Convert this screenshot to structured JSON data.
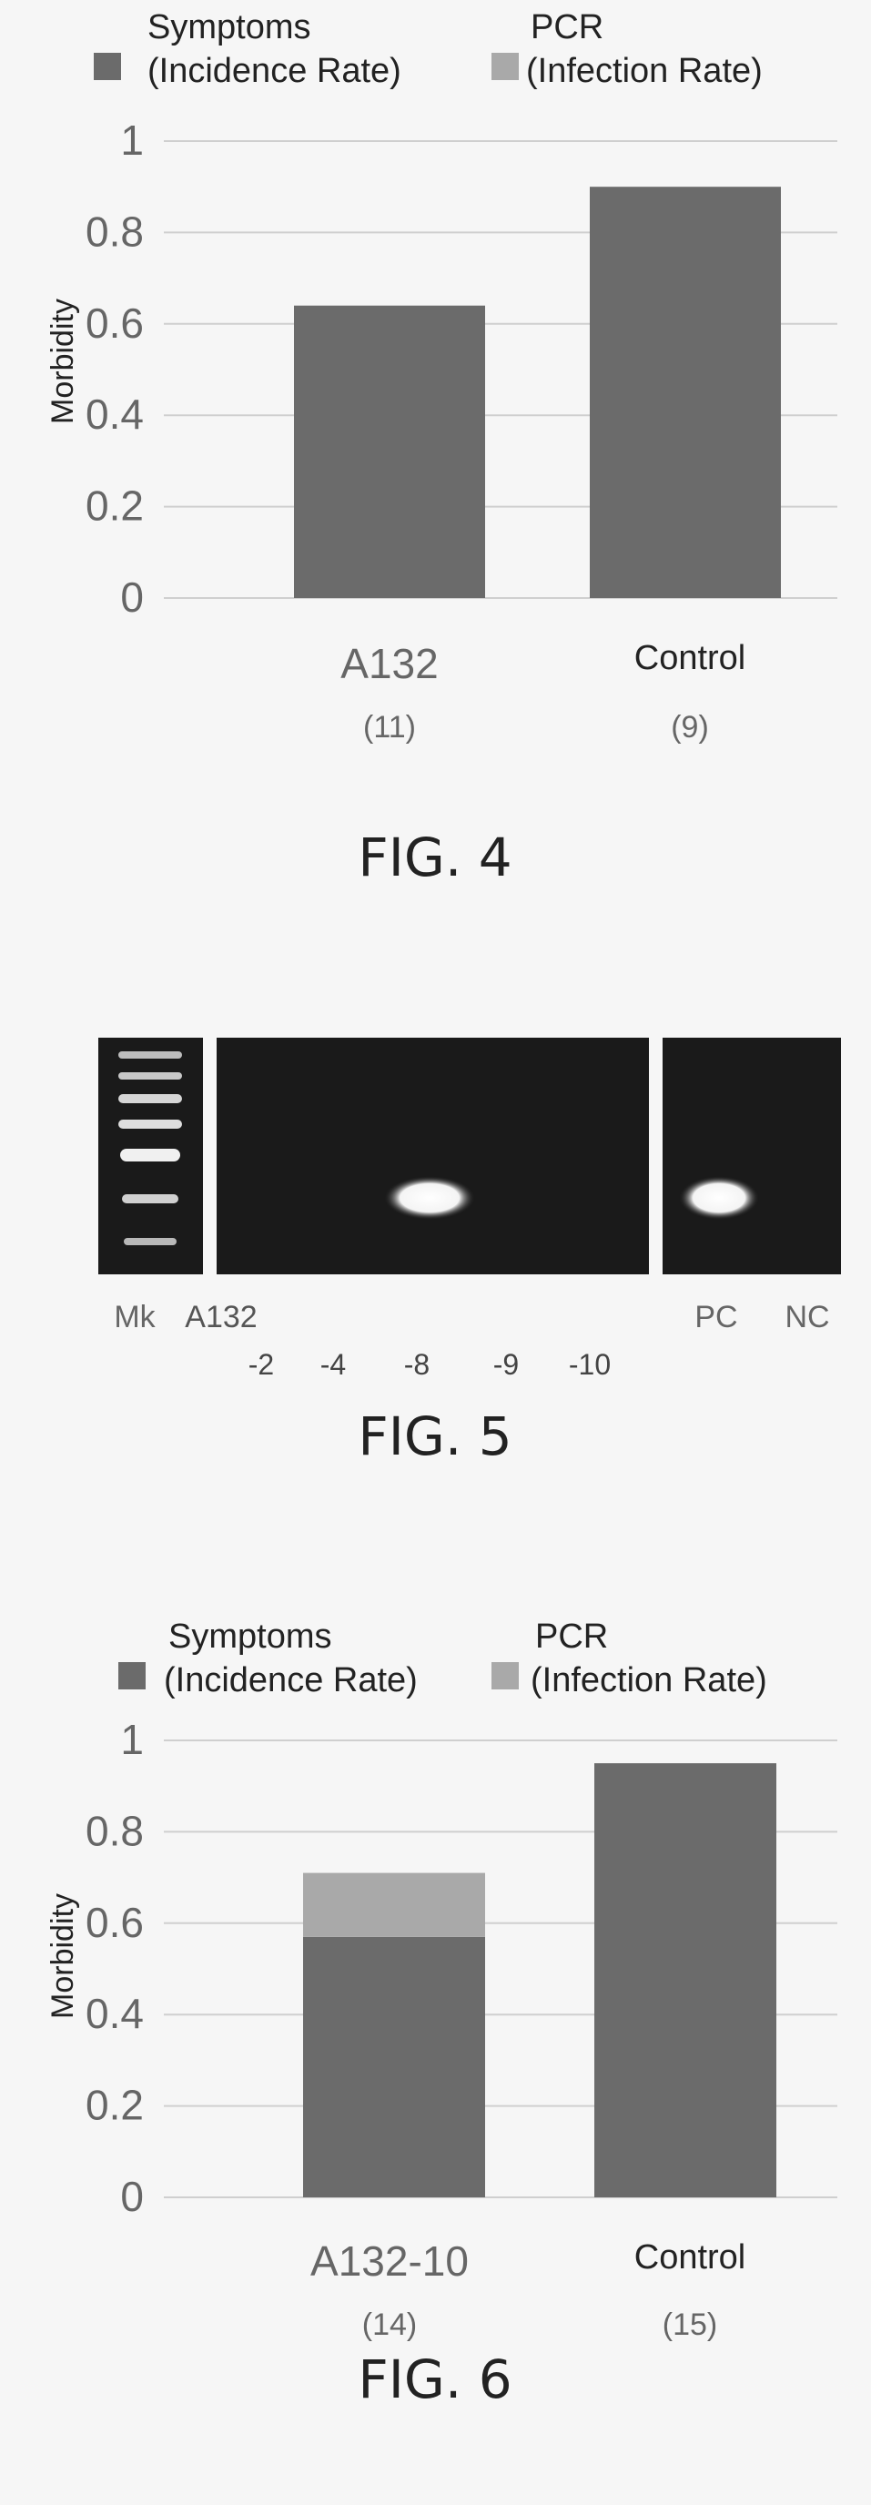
{
  "colors": {
    "symptoms": "#6b6b6b",
    "pcr": "#a9a9a9",
    "gel_background": "#1a1a1a",
    "band": "#ffffff",
    "gridline": "#cfcfcf"
  },
  "figures": {
    "fig4": {
      "caption": "FIG. 4",
      "chart_data": {
        "type": "bar",
        "stacked": true,
        "categories": [
          "A132",
          "Control"
        ],
        "category_counts": [
          "(11)",
          "(9)"
        ],
        "series": [
          {
            "name": "Symptoms (Incidence Rate)",
            "values": [
              0.64,
              0.9
            ]
          },
          {
            "name": "PCR (Infection Rate)",
            "values": [
              0,
              0
            ]
          }
        ],
        "legend": [
          {
            "line1": "Symptoms",
            "line2": "(Incidence Rate)"
          },
          {
            "line1": "PCR",
            "line2": "(Infection Rate)"
          }
        ],
        "legend_position": "top",
        "ylabel": "Morbidity",
        "ylim": [
          0,
          1
        ],
        "yticks": [
          "0",
          "0.2",
          "0.4",
          "0.6",
          "0.8",
          "1"
        ],
        "grid": true
      }
    },
    "fig5": {
      "caption": "FIG. 5",
      "gel": {
        "lane_labels": [
          "Mk",
          "A132",
          "PC",
          "NC"
        ],
        "dilution_labels": [
          "-2",
          "-4",
          "-8",
          "-9",
          "-10"
        ],
        "bands": [
          "-8",
          "PC"
        ]
      }
    },
    "fig6": {
      "caption": "FIG. 6",
      "chart_data": {
        "type": "bar",
        "stacked": true,
        "categories": [
          "A132-10",
          "Control"
        ],
        "category_counts": [
          "(14)",
          "(15)"
        ],
        "series": [
          {
            "name": "Symptoms (Incidence Rate)",
            "values": [
              0.57,
              0.95
            ]
          },
          {
            "name": "PCR (Infection Rate)",
            "values": [
              0.14,
              0
            ]
          }
        ],
        "legend": [
          {
            "line1": "Symptoms",
            "line2": "(Incidence Rate)"
          },
          {
            "line1": "PCR",
            "line2": "(Infection Rate)"
          }
        ],
        "legend_position": "top",
        "ylabel": "Morbidity",
        "ylim": [
          0,
          1
        ],
        "yticks": [
          "0",
          "0.2",
          "0.4",
          "0.6",
          "0.8",
          "1"
        ],
        "grid": true
      }
    }
  }
}
